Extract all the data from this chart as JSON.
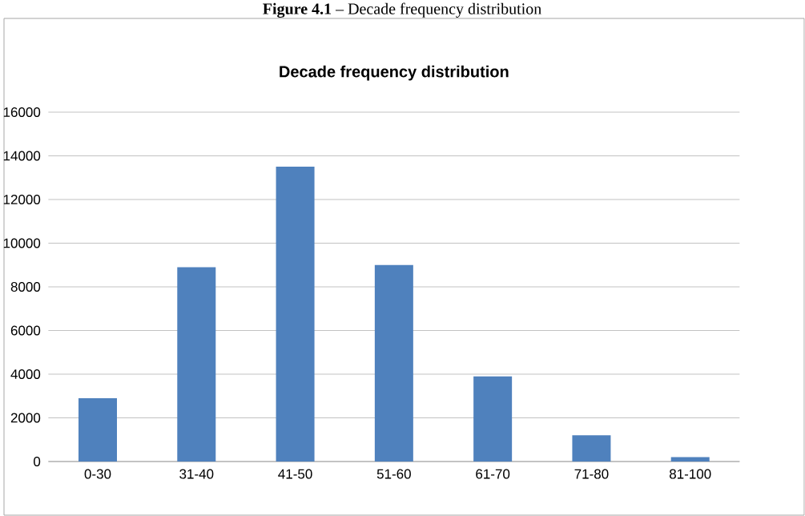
{
  "chart_data": {
    "type": "bar",
    "title": "Decade frequency distribution",
    "annotations": [
      "**Figure 4.1** – Decade frequency distribution"
    ],
    "categories": [
      "0-30",
      "31-40",
      "41-50",
      "51-60",
      "61-70",
      "71-80",
      "81-100"
    ],
    "values": [
      2900,
      8900,
      13500,
      9000,
      3900,
      1200,
      200
    ],
    "color": "#4f81bd",
    "ylim": [
      0,
      16000
    ],
    "yticks": [
      0,
      2000,
      4000,
      6000,
      8000,
      10000,
      12000,
      14000,
      16000
    ],
    "grid": "y"
  }
}
